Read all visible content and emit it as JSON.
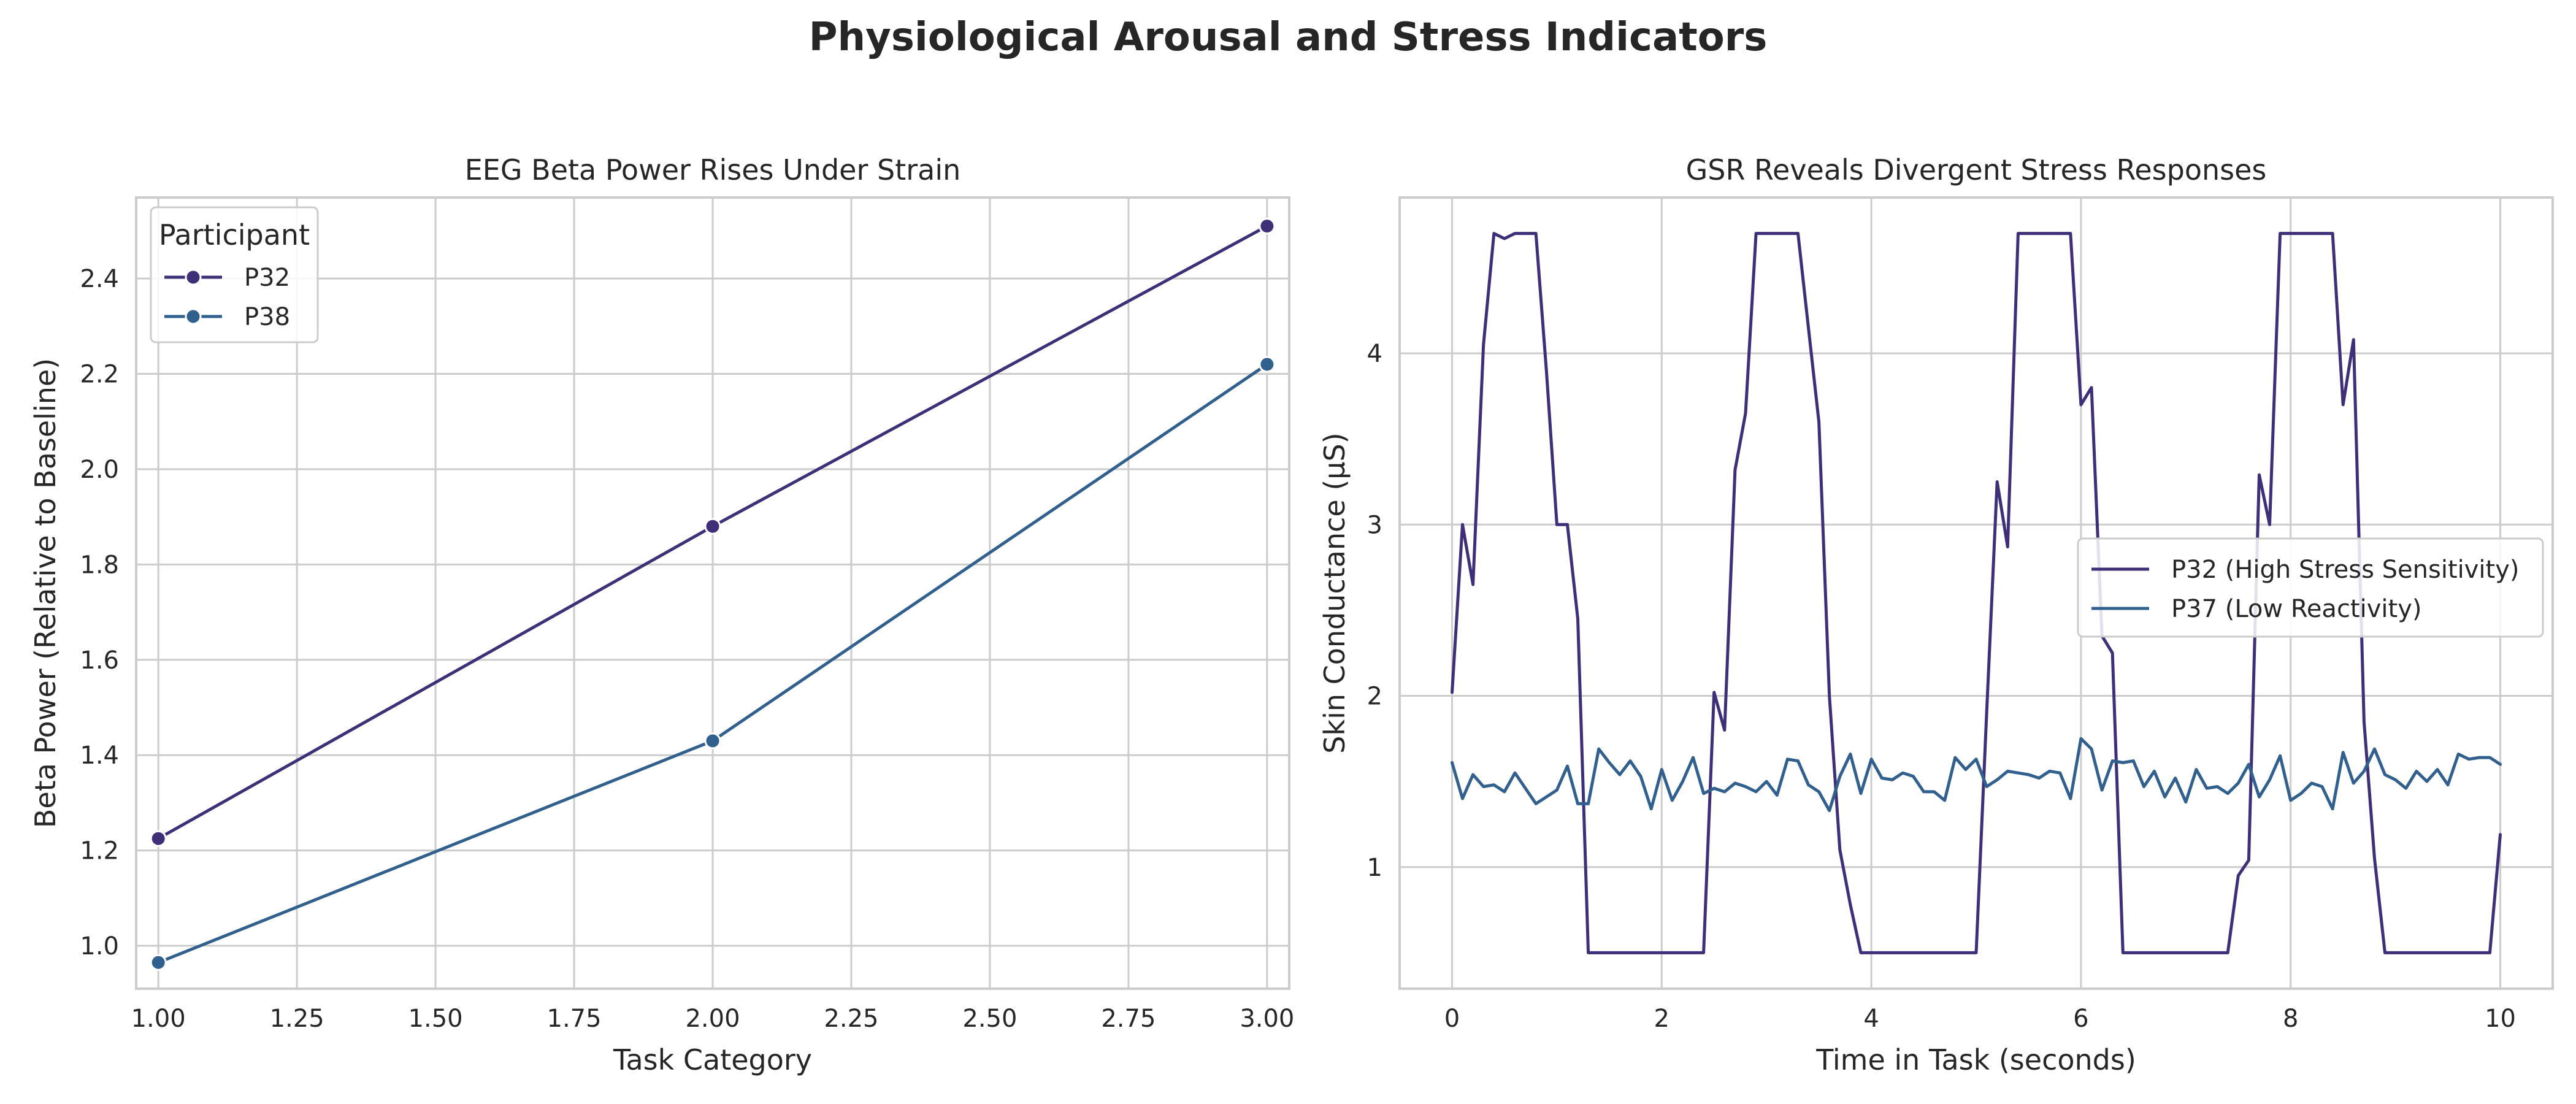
{
  "figure": {
    "title": "Physiological Arousal and Stress Indicators"
  },
  "colors": {
    "series_dark": "#3f2f78",
    "series_blue": "#31608e",
    "grid": "#cccccc",
    "axes_border": "#cccccc",
    "background": "#ffffff",
    "text": "#262626"
  },
  "chart_data": [
    {
      "type": "line",
      "title": "EEG Beta Power Rises Under Strain",
      "xlabel": "Task Category",
      "ylabel": "Beta Power (Relative to Baseline)",
      "xlim": [
        0.96,
        3.04
      ],
      "ylim": [
        0.91,
        2.57
      ],
      "xticks": [
        1.0,
        1.25,
        1.5,
        1.75,
        2.0,
        2.25,
        2.5,
        2.75,
        3.0
      ],
      "xtick_labels": [
        "1.00",
        "1.25",
        "1.50",
        "1.75",
        "2.00",
        "2.25",
        "2.50",
        "2.75",
        "3.00"
      ],
      "yticks": [
        1.0,
        1.2,
        1.4,
        1.6,
        1.8,
        2.0,
        2.2,
        2.4
      ],
      "ytick_labels": [
        "1.0",
        "1.2",
        "1.4",
        "1.6",
        "1.8",
        "2.0",
        "2.2",
        "2.4"
      ],
      "grid": true,
      "legend": {
        "title": "Participant",
        "placement": "upper-left"
      },
      "markers": true,
      "series": [
        {
          "name": "P32",
          "x": [
            1.0,
            2.0,
            3.0
          ],
          "y": [
            1.225,
            1.88,
            2.51
          ]
        },
        {
          "name": "P38",
          "x": [
            1.0,
            2.0,
            3.0
          ],
          "y": [
            0.965,
            1.43,
            2.22
          ]
        }
      ]
    },
    {
      "type": "line",
      "title": "GSR Reveals Divergent Stress Responses",
      "xlabel": "Time in Task (seconds)",
      "ylabel": "Skin Conductance (μS)",
      "xlim": [
        -0.5,
        10.5
      ],
      "ylim": [
        0.29,
        4.91
      ],
      "xticks": [
        0,
        2,
        4,
        6,
        8,
        10
      ],
      "xtick_labels": [
        "0",
        "2",
        "4",
        "6",
        "8",
        "10"
      ],
      "yticks": [
        1,
        2,
        3,
        4
      ],
      "ytick_labels": [
        "1",
        "2",
        "3",
        "4"
      ],
      "grid": true,
      "legend": {
        "placement": "center-right"
      },
      "markers": false,
      "series": [
        {
          "name": "P32 (High Stress Sensitivity)",
          "x": [
            0.0,
            0.1,
            0.2,
            0.3,
            0.4,
            0.5,
            0.6,
            0.7,
            0.8,
            0.9,
            1.0,
            1.1,
            1.2,
            1.3,
            1.4,
            1.5,
            1.6,
            1.7,
            1.8,
            1.9,
            2.0,
            2.1,
            2.2,
            2.3,
            2.4,
            2.5,
            2.6,
            2.7,
            2.8,
            2.9,
            3.0,
            3.1,
            3.2,
            3.3,
            3.4,
            3.5,
            3.6,
            3.7,
            3.8,
            3.9,
            4.0,
            4.1,
            4.2,
            4.3,
            4.4,
            4.5,
            4.6,
            4.7,
            4.8,
            4.9,
            5.0,
            5.1,
            5.2,
            5.3,
            5.4,
            5.5,
            5.6,
            5.7,
            5.8,
            5.9,
            6.0,
            6.1,
            6.2,
            6.3,
            6.4,
            6.5,
            6.6,
            6.7,
            6.8,
            6.9,
            7.0,
            7.1,
            7.2,
            7.3,
            7.4,
            7.5,
            7.6,
            7.7,
            7.8,
            7.9,
            8.0,
            8.1,
            8.2,
            8.3,
            8.4,
            8.5,
            8.6,
            8.7,
            8.8,
            8.9,
            9.0,
            9.1,
            9.2,
            9.3,
            9.4,
            9.5,
            9.6,
            9.7,
            9.8,
            9.9,
            10.0
          ],
          "y": [
            2.02,
            3.0,
            2.65,
            4.05,
            4.7,
            4.67,
            4.7,
            4.7,
            4.7,
            3.9,
            3.0,
            3.0,
            2.45,
            0.5,
            0.5,
            0.5,
            0.5,
            0.5,
            0.5,
            0.5,
            0.5,
            0.5,
            0.5,
            0.5,
            0.5,
            2.02,
            1.8,
            3.32,
            3.65,
            4.7,
            4.7,
            4.7,
            4.7,
            4.7,
            4.15,
            3.6,
            2.0,
            1.1,
            0.78,
            0.5,
            0.5,
            0.5,
            0.5,
            0.5,
            0.5,
            0.5,
            0.5,
            0.5,
            0.5,
            0.5,
            0.5,
            1.9,
            3.25,
            2.87,
            4.7,
            4.7,
            4.7,
            4.7,
            4.7,
            4.7,
            3.7,
            3.8,
            2.35,
            2.25,
            0.5,
            0.5,
            0.5,
            0.5,
            0.5,
            0.5,
            0.5,
            0.5,
            0.5,
            0.5,
            0.5,
            0.95,
            1.04,
            3.29,
            3.0,
            4.7,
            4.7,
            4.7,
            4.7,
            4.7,
            4.7,
            3.7,
            4.08,
            1.85,
            1.05,
            0.5,
            0.5,
            0.5,
            0.5,
            0.5,
            0.5,
            0.5,
            0.5,
            0.5,
            0.5,
            0.5,
            1.19
          ]
        },
        {
          "name": "P37 (Low Reactivity)",
          "x": [
            0.0,
            0.1,
            0.2,
            0.3,
            0.4,
            0.5,
            0.6,
            0.7,
            0.8,
            0.9,
            1.0,
            1.1,
            1.2,
            1.3,
            1.4,
            1.5,
            1.6,
            1.7,
            1.8,
            1.9,
            2.0,
            2.1,
            2.2,
            2.3,
            2.4,
            2.5,
            2.6,
            2.7,
            2.8,
            2.9,
            3.0,
            3.1,
            3.2,
            3.3,
            3.4,
            3.5,
            3.6,
            3.7,
            3.8,
            3.9,
            4.0,
            4.1,
            4.2,
            4.3,
            4.4,
            4.5,
            4.6,
            4.7,
            4.8,
            4.9,
            5.0,
            5.1,
            5.2,
            5.3,
            5.4,
            5.5,
            5.6,
            5.7,
            5.8,
            5.9,
            6.0,
            6.1,
            6.2,
            6.3,
            6.4,
            6.5,
            6.6,
            6.7,
            6.8,
            6.9,
            7.0,
            7.1,
            7.2,
            7.3,
            7.4,
            7.5,
            7.6,
            7.7,
            7.8,
            7.9,
            8.0,
            8.1,
            8.2,
            8.3,
            8.4,
            8.5,
            8.6,
            8.7,
            8.8,
            8.9,
            9.0,
            9.1,
            9.2,
            9.3,
            9.4,
            9.5,
            9.6,
            9.7,
            9.8,
            9.9,
            10.0
          ],
          "y": [
            1.61,
            1.4,
            1.54,
            1.47,
            1.48,
            1.44,
            1.55,
            1.46,
            1.37,
            1.41,
            1.45,
            1.59,
            1.37,
            1.37,
            1.69,
            1.61,
            1.54,
            1.62,
            1.53,
            1.34,
            1.57,
            1.39,
            1.5,
            1.64,
            1.43,
            1.46,
            1.44,
            1.49,
            1.47,
            1.44,
            1.5,
            1.42,
            1.63,
            1.62,
            1.48,
            1.44,
            1.33,
            1.53,
            1.66,
            1.43,
            1.63,
            1.52,
            1.51,
            1.55,
            1.53,
            1.44,
            1.44,
            1.39,
            1.64,
            1.57,
            1.63,
            1.47,
            1.51,
            1.56,
            1.55,
            1.54,
            1.52,
            1.56,
            1.55,
            1.4,
            1.75,
            1.69,
            1.45,
            1.62,
            1.61,
            1.62,
            1.47,
            1.56,
            1.41,
            1.52,
            1.38,
            1.57,
            1.46,
            1.47,
            1.43,
            1.49,
            1.6,
            1.41,
            1.51,
            1.65,
            1.39,
            1.43,
            1.49,
            1.47,
            1.34,
            1.67,
            1.49,
            1.56,
            1.69,
            1.54,
            1.51,
            1.46,
            1.56,
            1.5,
            1.57,
            1.48,
            1.66,
            1.63,
            1.64,
            1.64,
            1.6
          ]
        }
      ]
    }
  ]
}
